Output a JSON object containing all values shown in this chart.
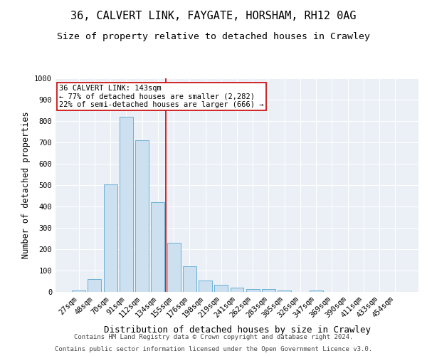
{
  "title1": "36, CALVERT LINK, FAYGATE, HORSHAM, RH12 0AG",
  "title2": "Size of property relative to detached houses in Crawley",
  "xlabel": "Distribution of detached houses by size in Crawley",
  "ylabel": "Number of detached properties",
  "categories": [
    "27sqm",
    "48sqm",
    "70sqm",
    "91sqm",
    "112sqm",
    "134sqm",
    "155sqm",
    "176sqm",
    "198sqm",
    "219sqm",
    "241sqm",
    "262sqm",
    "283sqm",
    "305sqm",
    "326sqm",
    "347sqm",
    "369sqm",
    "390sqm",
    "411sqm",
    "433sqm",
    "454sqm"
  ],
  "values": [
    8,
    60,
    505,
    820,
    710,
    420,
    230,
    120,
    55,
    35,
    20,
    12,
    12,
    8,
    0,
    8,
    0,
    0,
    0,
    0,
    0
  ],
  "bar_color": "#cce0f0",
  "bar_edge_color": "#6aafd6",
  "vline_x": 5.5,
  "vline_color": "#cc0000",
  "annotation_text": "36 CALVERT LINK: 143sqm\n← 77% of detached houses are smaller (2,282)\n22% of semi-detached houses are larger (666) →",
  "annotation_box_color": "#ffffff",
  "annotation_box_edge": "#cc0000",
  "ylim": [
    0,
    1000
  ],
  "yticks": [
    0,
    100,
    200,
    300,
    400,
    500,
    600,
    700,
    800,
    900,
    1000
  ],
  "footer1": "Contains HM Land Registry data © Crown copyright and database right 2024.",
  "footer2": "Contains public sector information licensed under the Open Government Licence v3.0.",
  "plot_bg_color": "#eaf0f6",
  "title1_fontsize": 11,
  "title2_fontsize": 9.5,
  "xlabel_fontsize": 9,
  "ylabel_fontsize": 8.5,
  "tick_fontsize": 7.5,
  "footer_fontsize": 6.5,
  "annotation_fontsize": 7.5
}
